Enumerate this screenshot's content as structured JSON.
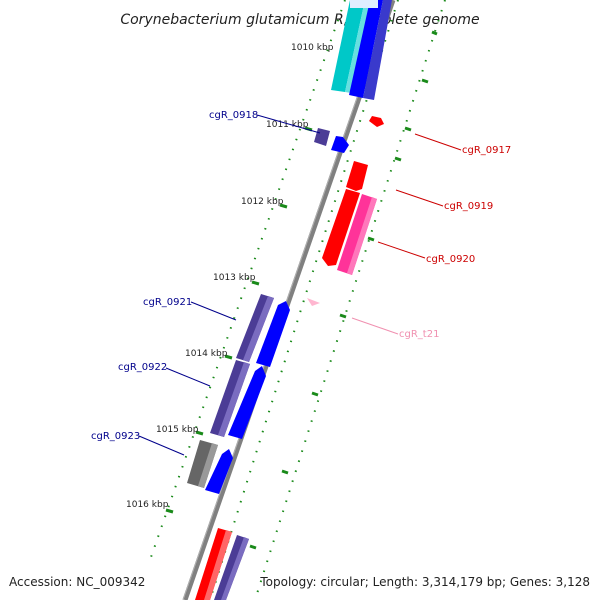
{
  "title": "Corynebacterium glutamicum R, complete genome",
  "accession": "Accession: NC_009342",
  "topology": "Topology: circular; Length: 3,314,179 bp; Genes: 3,128",
  "ticks": [
    "1010 kbp",
    "1011 kbp",
    "1012 kbp",
    "1013 kbp",
    "1014 kbp",
    "1015 kbp",
    "1016 kbp"
  ],
  "gene_labels": [
    {
      "id": "cgR_0918",
      "color": "#00008b"
    },
    {
      "id": "cgR_0917",
      "color": "#cc0000"
    },
    {
      "id": "cgR_0919",
      "color": "#cc0000"
    },
    {
      "id": "cgR_0920",
      "color": "#cc0000"
    },
    {
      "id": "cgR_0921",
      "color": "#00008b"
    },
    {
      "id": "cgR_t21",
      "color": "#f090b0"
    },
    {
      "id": "cgR_0922",
      "color": "#00008b"
    },
    {
      "id": "cgR_0923",
      "color": "#00008b"
    }
  ],
  "colors": {
    "backbone": "#808080",
    "tick_marks": "#1a8a1a",
    "cyan_feature": "#00c8c8",
    "blue_feature": "#0000ff",
    "purple_feature": "#4b3c96",
    "red_feature": "#ff0000",
    "pink_feature": "#ff3399",
    "gray_feature": "#666666",
    "trna_feature": "#ffb6d0"
  }
}
